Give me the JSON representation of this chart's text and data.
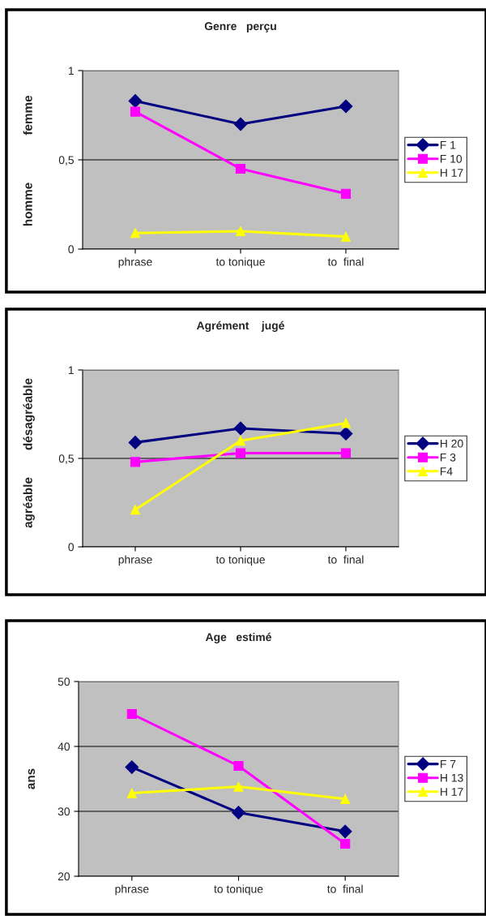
{
  "chart_data": [
    {
      "type": "line",
      "title": "Genre   perçu",
      "categories": [
        "phrase",
        "to tonique",
        "to  final"
      ],
      "ylim": [
        0,
        1
      ],
      "yticks": [
        0,
        {
          "value": 0.5,
          "label": "0,5"
        },
        1
      ],
      "grid": "y",
      "legend": "right",
      "annotations": [
        "femme",
        "homme"
      ],
      "series": [
        {
          "name": "F 1",
          "color": "#000080",
          "marker": "diamond",
          "values": [
            0.83,
            0.7,
            0.8
          ]
        },
        {
          "name": "F 10",
          "color": "#ff00ff",
          "marker": "square",
          "values": [
            0.77,
            0.45,
            0.31
          ]
        },
        {
          "name": "H 17",
          "color": "#ffff00",
          "marker": "triangle",
          "values": [
            0.09,
            0.1,
            0.07
          ]
        }
      ]
    },
    {
      "type": "line",
      "title": "Agrément    jugé",
      "categories": [
        "phrase",
        "to tonique",
        "to  final"
      ],
      "ylim": [
        0,
        1
      ],
      "yticks": [
        0,
        {
          "value": 0.5,
          "label": "0,5"
        },
        1
      ],
      "grid": "y",
      "legend": "right",
      "annotations": [
        "désagréable",
        "agréable"
      ],
      "series": [
        {
          "name": "H 20",
          "color": "#000080",
          "marker": "diamond",
          "values": [
            0.59,
            0.67,
            0.64
          ]
        },
        {
          "name": "F 3",
          "color": "#ff00ff",
          "marker": "square",
          "values": [
            0.48,
            0.53,
            0.53
          ]
        },
        {
          "name": "F4",
          "color": "#ffff00",
          "marker": "triangle",
          "values": [
            0.21,
            0.6,
            0.7
          ]
        }
      ]
    },
    {
      "type": "line",
      "title": "Age   estimé",
      "ylabel": "ans",
      "categories": [
        "phrase",
        "to tonique",
        "to  final"
      ],
      "ylim": [
        20,
        50
      ],
      "yticks": [
        20,
        30,
        40,
        50
      ],
      "grid": "y",
      "legend": "right",
      "series": [
        {
          "name": "F 7",
          "color": "#000080",
          "marker": "diamond",
          "values": [
            36.8,
            29.8,
            26.9
          ]
        },
        {
          "name": "H 13",
          "color": "#ff00ff",
          "marker": "square",
          "values": [
            45,
            37,
            25
          ]
        },
        {
          "name": "H 17",
          "color": "#ffff00",
          "marker": "triangle",
          "values": [
            32.8,
            33.8,
            31.9
          ]
        }
      ]
    }
  ]
}
